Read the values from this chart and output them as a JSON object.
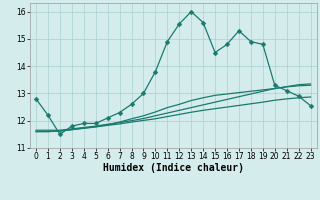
{
  "title": "",
  "xlabel": "Humidex (Indice chaleur)",
  "xlim": [
    -0.5,
    23.5
  ],
  "ylim": [
    11,
    16.3
  ],
  "yticks": [
    11,
    12,
    13,
    14,
    15,
    16
  ],
  "xticks": [
    0,
    1,
    2,
    3,
    4,
    5,
    6,
    7,
    8,
    9,
    10,
    11,
    12,
    13,
    14,
    15,
    16,
    17,
    18,
    19,
    20,
    21,
    22,
    23
  ],
  "background_color": "#d4ecec",
  "grid_color": "#aad0d0",
  "line_color": "#1a7a6e",
  "line1_x": [
    0,
    1,
    2,
    3,
    4,
    5,
    6,
    7,
    8,
    9,
    10,
    11,
    12,
    13,
    14,
    15,
    16,
    17,
    18,
    19,
    20,
    21,
    22,
    23
  ],
  "line1_y": [
    12.8,
    12.2,
    11.5,
    11.8,
    11.9,
    11.9,
    12.1,
    12.3,
    12.6,
    13.0,
    13.8,
    14.9,
    15.55,
    16.0,
    15.6,
    14.5,
    14.8,
    15.3,
    14.9,
    14.8,
    13.3,
    13.1,
    12.9,
    12.55
  ],
  "line2_x": [
    0,
    1,
    2,
    3,
    4,
    5,
    6,
    7,
    8,
    9,
    10,
    11,
    12,
    13,
    14,
    15,
    16,
    17,
    18,
    19,
    20,
    21,
    22,
    23
  ],
  "line2_y": [
    11.65,
    11.65,
    11.65,
    11.7,
    11.75,
    11.8,
    11.87,
    11.93,
    12.0,
    12.08,
    12.18,
    12.28,
    12.38,
    12.48,
    12.58,
    12.68,
    12.78,
    12.88,
    12.98,
    13.08,
    13.18,
    13.25,
    13.32,
    13.35
  ],
  "line3_x": [
    0,
    1,
    2,
    3,
    4,
    5,
    6,
    7,
    8,
    9,
    10,
    11,
    12,
    13,
    14,
    15,
    16,
    17,
    18,
    19,
    20,
    21,
    22,
    23
  ],
  "line3_y": [
    11.6,
    11.6,
    11.62,
    11.67,
    11.72,
    11.77,
    11.83,
    11.88,
    11.95,
    12.01,
    12.07,
    12.15,
    12.23,
    12.31,
    12.38,
    12.44,
    12.5,
    12.56,
    12.62,
    12.68,
    12.75,
    12.8,
    12.84,
    12.87
  ],
  "line4_x": [
    0,
    1,
    2,
    3,
    4,
    5,
    6,
    7,
    8,
    9,
    10,
    11,
    12,
    13,
    14,
    15,
    16,
    17,
    18,
    19,
    20,
    21,
    22,
    23
  ],
  "line4_y": [
    11.6,
    11.6,
    11.62,
    11.67,
    11.73,
    11.78,
    11.85,
    11.95,
    12.07,
    12.18,
    12.32,
    12.48,
    12.6,
    12.74,
    12.84,
    12.93,
    12.98,
    13.03,
    13.08,
    13.13,
    13.18,
    13.24,
    13.28,
    13.3
  ],
  "marker_size": 2.5,
  "linewidth": 0.9,
  "tick_fontsize": 5.5,
  "xlabel_fontsize": 7
}
